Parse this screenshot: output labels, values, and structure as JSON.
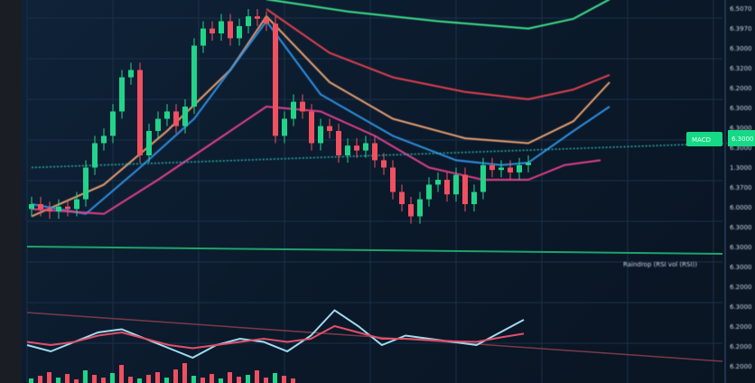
{
  "header": {
    "symbol": "",
    "info": ""
  },
  "colors": {
    "up": "#22d48a",
    "down": "#f0505f",
    "bg": "#0b1828",
    "grid": "#1a3048",
    "teal": "#2bb3b0",
    "badge": "#16d985"
  },
  "chart_data": [
    {
      "type": "candlestick",
      "title": "",
      "ylim": [
        0,
        105
      ],
      "closes": [
        20,
        18,
        17,
        19,
        18,
        22,
        35,
        45,
        48,
        58,
        72,
        75,
        40,
        50,
        55,
        58,
        52,
        60,
        85,
        92,
        90,
        95,
        88,
        93,
        97,
        96,
        94,
        48,
        55,
        62,
        58,
        45,
        52,
        50,
        40,
        44,
        42,
        45,
        38,
        35,
        25,
        20,
        15,
        22,
        28,
        30,
        24,
        32,
        20,
        25,
        36,
        34,
        35,
        33,
        36,
        37
      ],
      "moving_averages": [
        {
          "color": "#3ee08a",
          "points": [
            [
              26,
              104
            ],
            [
              35,
              99
            ],
            [
              45,
              95
            ],
            [
              55,
              92
            ],
            [
              60,
              96
            ],
            [
              64,
              104
            ]
          ]
        },
        {
          "color": "#e0404f",
          "points": [
            [
              26,
              100
            ],
            [
              33,
              82
            ],
            [
              40,
              72
            ],
            [
              48,
              66
            ],
            [
              55,
              63
            ],
            [
              60,
              67
            ],
            [
              64,
              73
            ]
          ]
        },
        {
          "color": "#e8a070",
          "points": [
            [
              0,
              15
            ],
            [
              8,
              28
            ],
            [
              15,
              50
            ],
            [
              22,
              75
            ],
            [
              26,
              97
            ],
            [
              33,
              70
            ],
            [
              40,
              55
            ],
            [
              48,
              47
            ],
            [
              55,
              45
            ],
            [
              60,
              54
            ],
            [
              64,
              70
            ]
          ]
        },
        {
          "color": "#2e8fe0",
          "points": [
            [
              0,
              20
            ],
            [
              6,
              16
            ],
            [
              12,
              35
            ],
            [
              18,
              55
            ],
            [
              23,
              80
            ],
            [
              26,
              95
            ],
            [
              32,
              65
            ],
            [
              40,
              48
            ],
            [
              47,
              38
            ],
            [
              52,
              36
            ],
            [
              55,
              37
            ],
            [
              60,
              50
            ],
            [
              64,
              60
            ]
          ]
        },
        {
          "color": "#e0408a",
          "points": [
            [
              0,
              18
            ],
            [
              8,
              16
            ],
            [
              14,
              30
            ],
            [
              20,
              45
            ],
            [
              26,
              60
            ],
            [
              32,
              58
            ],
            [
              38,
              48
            ],
            [
              44,
              35
            ],
            [
              50,
              30
            ],
            [
              55,
              30
            ],
            [
              59,
              36
            ],
            [
              63,
              38
            ]
          ]
        },
        {
          "color": "#2bb3b0",
          "dashed": true,
          "points": [
            [
              0,
              35
            ],
            [
              77,
              45
            ]
          ]
        }
      ],
      "badge": "MACD",
      "badge_value": "6.3000",
      "price_labels": [
        "6.5070",
        "6.3970",
        "6.3000",
        "6.3200",
        "6.2000",
        "6.3000",
        "6.3000",
        "6.3000",
        "1.3000",
        "6.3700",
        "6.0000",
        "6.3000",
        "6.3000",
        "6.3000",
        "6.2000",
        "6.3000",
        "6.2000",
        "6.2000",
        "6.2000"
      ]
    },
    {
      "type": "line",
      "title": "Raindrop (RSI vol (RSI))",
      "series": [
        {
          "color": "#9fdcf0",
          "values": [
            40,
            30,
            45,
            60,
            65,
            50,
            35,
            20,
            40,
            50,
            45,
            30,
            55,
            95,
            70,
            40,
            55,
            50,
            45,
            40,
            60,
            80
          ]
        },
        {
          "color": "#e0506a",
          "values": [
            45,
            40,
            45,
            55,
            60,
            50,
            40,
            35,
            40,
            45,
            50,
            45,
            50,
            70,
            60,
            50,
            50,
            48,
            46,
            45,
            52,
            58
          ]
        }
      ],
      "histogram": [
        5,
        8,
        12,
        6,
        10,
        4,
        14,
        9,
        6,
        11,
        20,
        7,
        5,
        9,
        12,
        6,
        15,
        22,
        8,
        6,
        10,
        5,
        12,
        7,
        9,
        14,
        6,
        11,
        8,
        5
      ]
    }
  ]
}
